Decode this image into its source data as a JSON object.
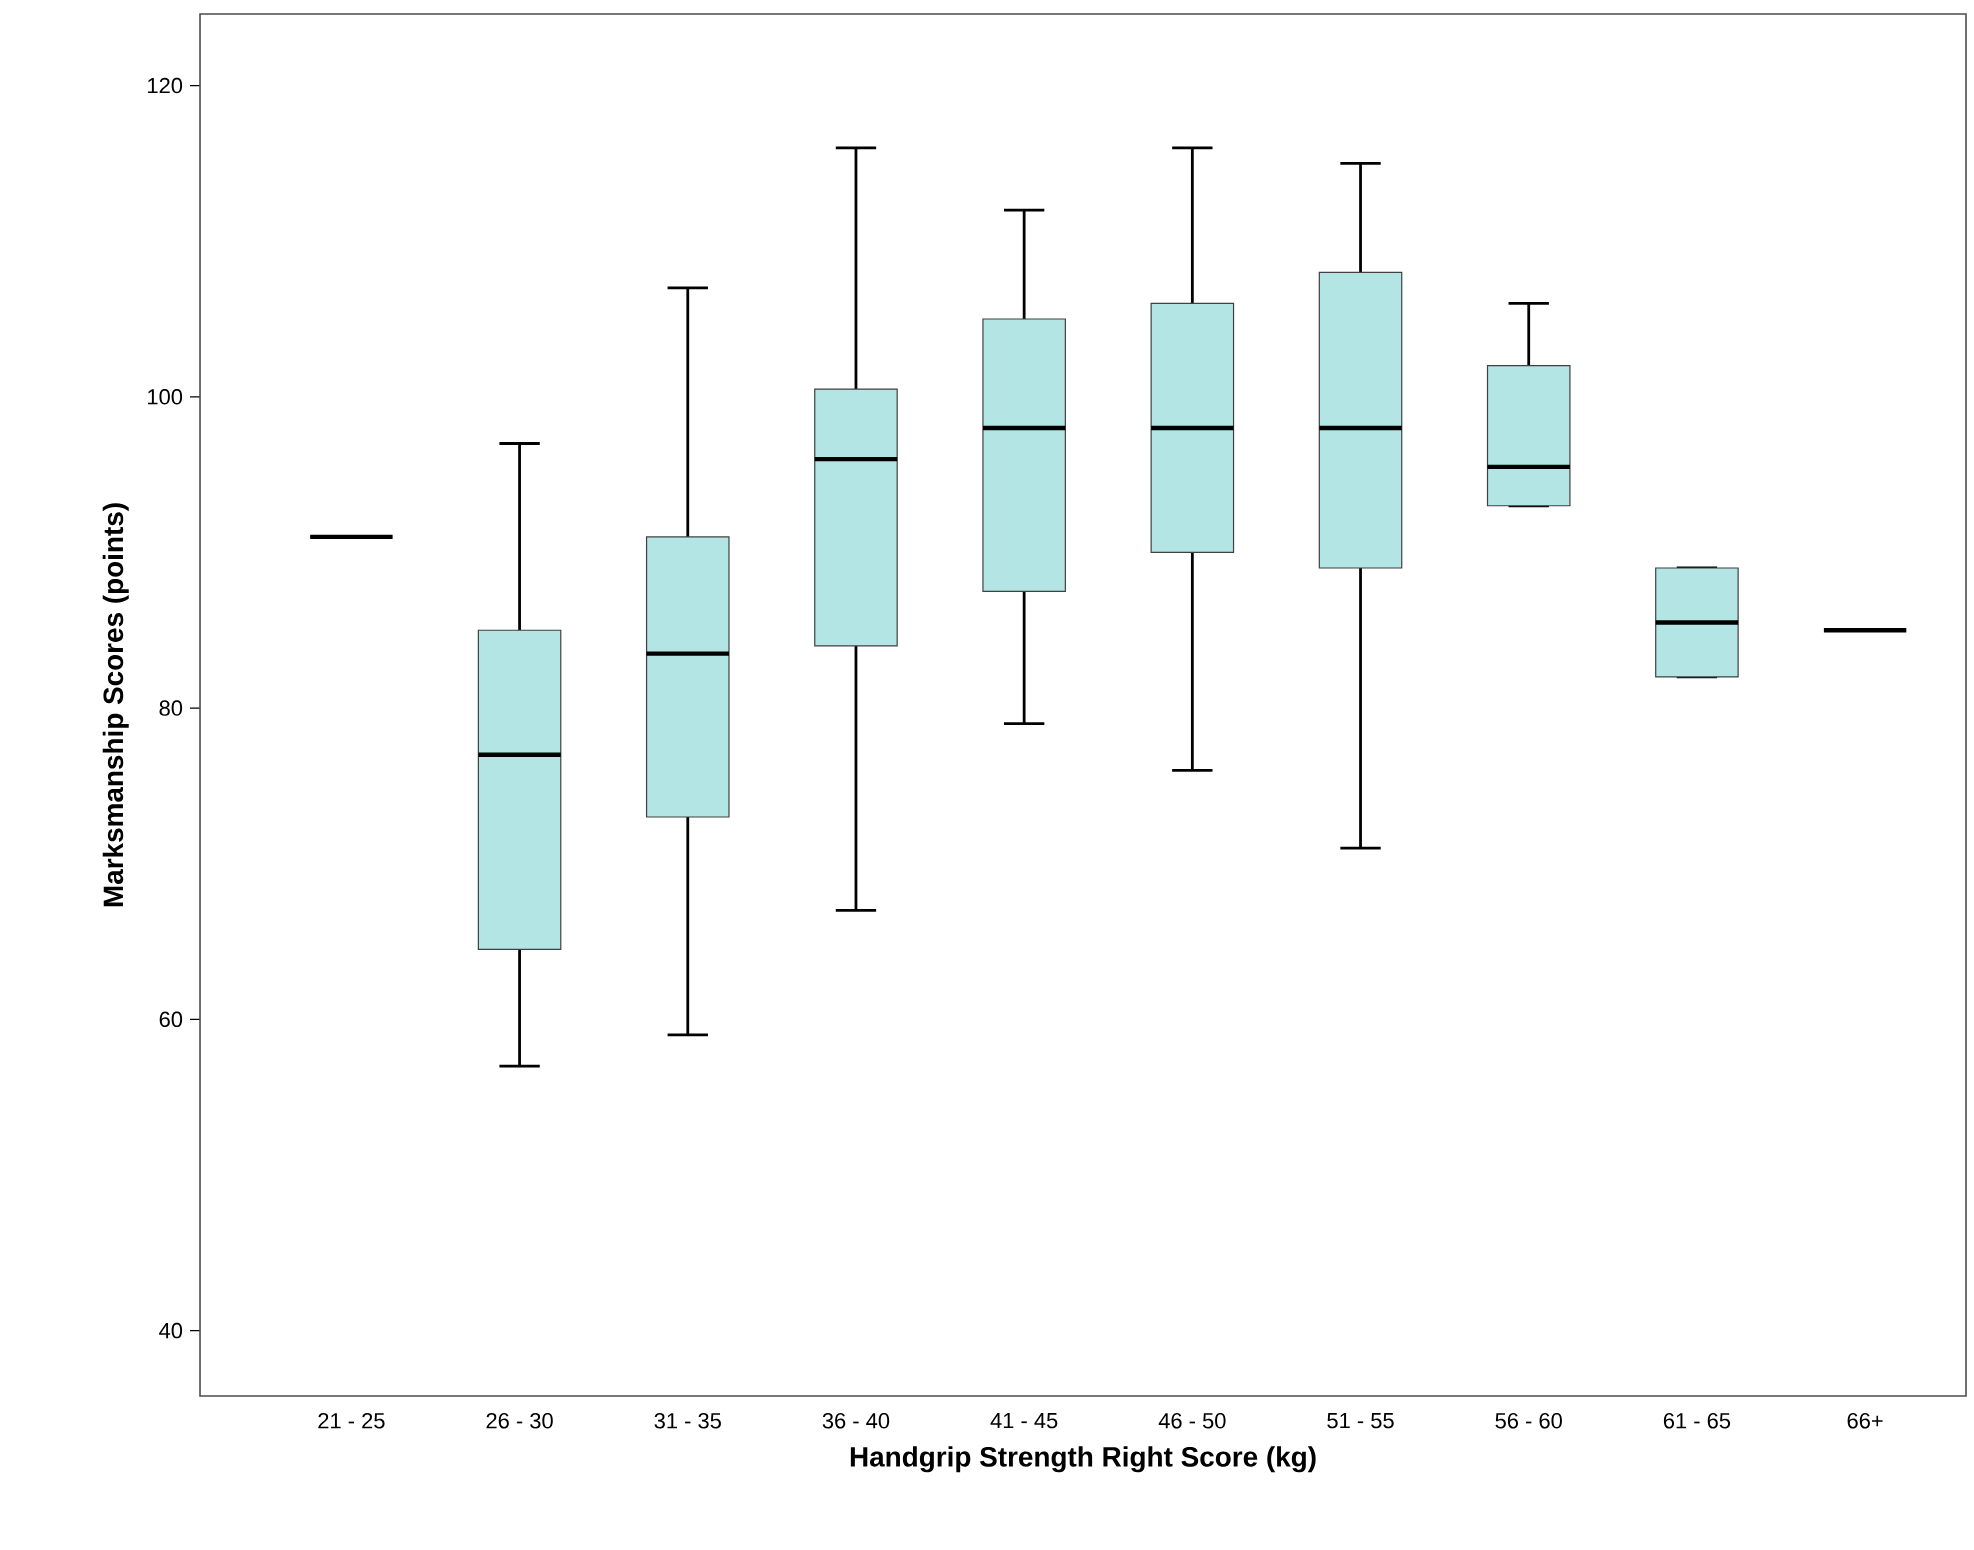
{
  "chart_data": {
    "type": "box",
    "xlabel": "Handgrip Strength Right Score   (kg)",
    "ylabel": "Marksmanship Scores (points)",
    "categories": [
      "21 - 25",
      "26 - 30",
      "31 - 35",
      "36 - 40",
      "41 - 45",
      "46 - 50",
      "51 - 55",
      "56 - 60",
      "61 - 65",
      "66+"
    ],
    "boxes": [
      {
        "low": 91,
        "q1": 91,
        "median": 91,
        "q3": 91,
        "high": 91
      },
      {
        "low": 57,
        "q1": 64.5,
        "median": 77,
        "q3": 85,
        "high": 97
      },
      {
        "low": 59,
        "q1": 73,
        "median": 83.5,
        "q3": 91,
        "high": 107
      },
      {
        "low": 67,
        "q1": 84,
        "median": 96,
        "q3": 100.5,
        "high": 116
      },
      {
        "low": 79,
        "q1": 87.5,
        "median": 98,
        "q3": 105,
        "high": 112
      },
      {
        "low": 76,
        "q1": 90,
        "median": 98,
        "q3": 106,
        "high": 116
      },
      {
        "low": 71,
        "q1": 89,
        "median": 98,
        "q3": 108,
        "high": 115
      },
      {
        "low": 93,
        "q1": 93,
        "median": 95.5,
        "q3": 102,
        "high": 106
      },
      {
        "low": 82,
        "q1": 82,
        "median": 85.5,
        "q3": 89,
        "high": 89
      },
      {
        "low": 85,
        "q1": 85,
        "median": 85,
        "q3": 85,
        "high": 85
      }
    ],
    "color": "#b3e5e5",
    "ylim": [
      35.8,
      124.6
    ],
    "yticks": [
      40,
      60,
      80,
      100,
      120
    ]
  }
}
